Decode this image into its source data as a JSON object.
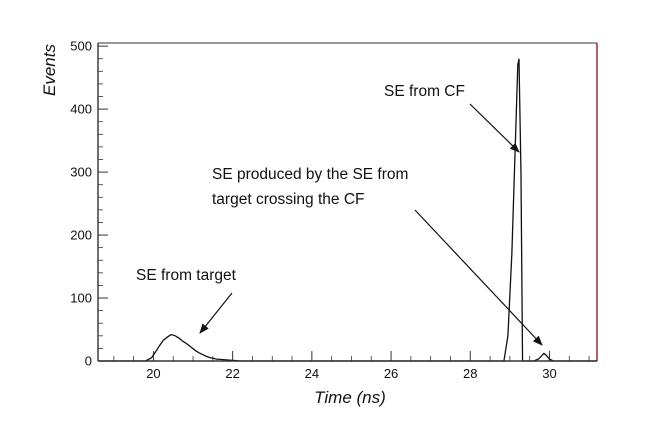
{
  "chart_data": {
    "type": "line",
    "title": "",
    "xlabel": "Time (ns)",
    "ylabel": "Events",
    "xlim": [
      18.6,
      31.2
    ],
    "ylim": [
      0,
      505
    ],
    "x_ticks": [
      20,
      22,
      24,
      26,
      28,
      30
    ],
    "y_ticks": [
      0,
      100,
      200,
      300,
      400,
      500
    ],
    "grid": false,
    "legend": "none",
    "colors": {
      "line": "#111111",
      "frame": "#333333",
      "right_frame": "#8b2020"
    },
    "series": [
      {
        "x": [
          18.6,
          19.8,
          19.95,
          20.05,
          20.15,
          20.25,
          20.35,
          20.45,
          20.55,
          20.65,
          20.75,
          20.85,
          20.95,
          21.05,
          21.15,
          21.25,
          21.35,
          21.45,
          21.6,
          21.8,
          22.0,
          22.2,
          22.5,
          24.0,
          26.0,
          28.0,
          28.85,
          28.95,
          29.05,
          29.12,
          29.16,
          29.2,
          29.23,
          29.28,
          29.32,
          29.4,
          29.6,
          29.72,
          29.8,
          29.86,
          29.92,
          30.0,
          30.1,
          31.2
        ],
        "y": [
          0,
          0,
          5,
          14,
          24,
          33,
          38,
          42,
          40,
          36,
          31,
          27,
          22,
          17,
          13,
          10,
          7,
          5,
          3,
          2,
          1,
          0,
          0,
          0,
          0,
          0,
          0,
          40,
          170,
          310,
          390,
          470,
          480,
          300,
          0,
          0,
          0,
          3,
          8,
          12,
          9,
          3,
          0,
          0
        ]
      }
    ],
    "annotations": [
      {
        "text": "SE from CF",
        "points_to": [
          29.2,
          330
        ]
      },
      {
        "lines": [
          "SE produced by the SE from",
          "target crossing the CF"
        ],
        "points_to": [
          29.85,
          22
        ]
      },
      {
        "text": "SE from target",
        "points_to": [
          21.05,
          40
        ]
      }
    ]
  }
}
